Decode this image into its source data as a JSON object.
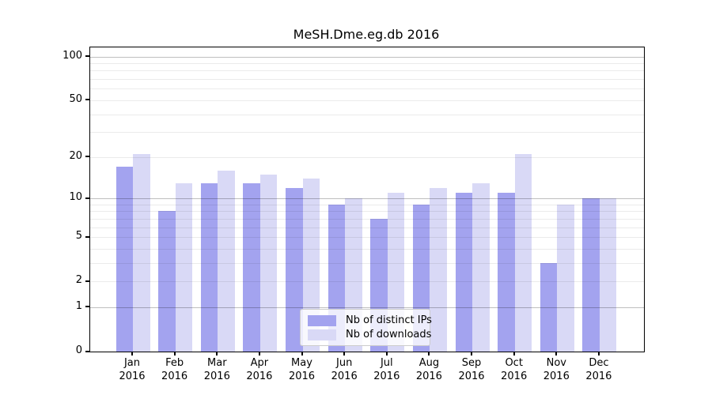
{
  "figure": {
    "background": "#ffffff",
    "text_color": "#000000"
  },
  "chart_data": {
    "type": "bar",
    "title": "MeSH.Dme.eg.db 2016",
    "x_categories": [
      "Jan",
      "Feb",
      "Mar",
      "Apr",
      "May",
      "Jun",
      "Jul",
      "Aug",
      "Sep",
      "Oct",
      "Nov",
      "Dec"
    ],
    "x_category_year": "2016",
    "series": [
      {
        "name": "Nb of distinct IPs",
        "color": "#a3a3ef",
        "values": [
          17,
          8,
          13,
          13,
          12,
          9,
          7,
          9,
          11,
          11,
          3,
          10
        ]
      },
      {
        "name": "Nb of downloads",
        "color": "#d9d9f6",
        "values": [
          21,
          13,
          16,
          15,
          14,
          10,
          11,
          12,
          13,
          21,
          9,
          10
        ]
      }
    ],
    "y_axis": {
      "scale": "log10(1+x)",
      "labeled_ticks": [
        100,
        50,
        20,
        10,
        5,
        2,
        1,
        0
      ],
      "major_gridlines": [
        1,
        10,
        100
      ],
      "minor_gridlines": [
        2,
        3,
        4,
        5,
        6,
        7,
        8,
        9,
        20,
        30,
        40,
        50,
        60,
        70,
        80,
        90
      ],
      "ylim": [
        0,
        116
      ]
    },
    "grid": true,
    "legend": {
      "position": "bottom-center"
    },
    "colors": {
      "axis_spine": "#000000",
      "major_grid": "rgba(0,0,0,0.25)",
      "minor_grid": "rgba(0,0,0,0.08)",
      "legend_background": "rgba(255,255,255,0.8)",
      "legend_border": "#cccccc"
    }
  }
}
